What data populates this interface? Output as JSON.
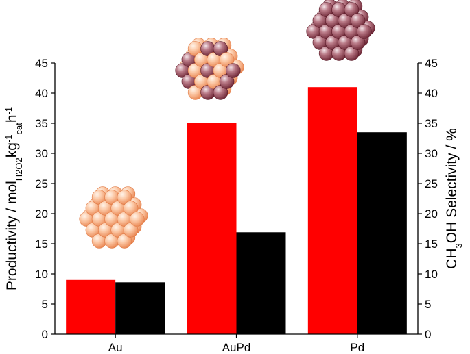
{
  "chart_data": {
    "type": "bar",
    "categories": [
      "Au",
      "AuPd",
      "Pd"
    ],
    "series": [
      {
        "values": [
          9.0,
          35.0,
          41.0
        ],
        "color": "#ff0000",
        "axis": "left"
      },
      {
        "values": [
          8.6,
          16.9,
          33.5
        ],
        "color": "#000000",
        "axis": "right"
      }
    ],
    "ylabel": {
      "parts": [
        {
          "t": "Productivity / mol"
        },
        {
          "t": "H2O2",
          "s": "sub"
        },
        {
          "t": "kg"
        },
        {
          "t": "-1",
          "s": "sup"
        },
        {
          "t": "cat",
          "s": "sub"
        },
        {
          "t": "h"
        },
        {
          "t": "-1",
          "s": "sup"
        }
      ]
    },
    "y2label": {
      "parts": [
        {
          "t": "CH"
        },
        {
          "t": "3",
          "s": "sub"
        },
        {
          "t": "OH Selectivity / %"
        }
      ]
    },
    "ylim": [
      0,
      45
    ],
    "y2lim": [
      0,
      45
    ],
    "yticks": [
      0,
      5,
      10,
      15,
      20,
      25,
      30,
      35,
      40,
      45
    ],
    "y2ticks": [
      0,
      5,
      10,
      15,
      20,
      25,
      30,
      35,
      40,
      45
    ],
    "grid": false,
    "legend": "none",
    "decorations": [
      {
        "category": "Au",
        "particle": "gold",
        "colors": [
          "#f6a77d",
          "#fde3cf"
        ]
      },
      {
        "category": "AuPd",
        "particle": "mixed",
        "colors": [
          "#f6a77d",
          "#8a3a48"
        ]
      },
      {
        "category": "Pd",
        "particle": "palladium",
        "colors": [
          "#8a3a48",
          "#e8c7cf"
        ]
      }
    ]
  }
}
